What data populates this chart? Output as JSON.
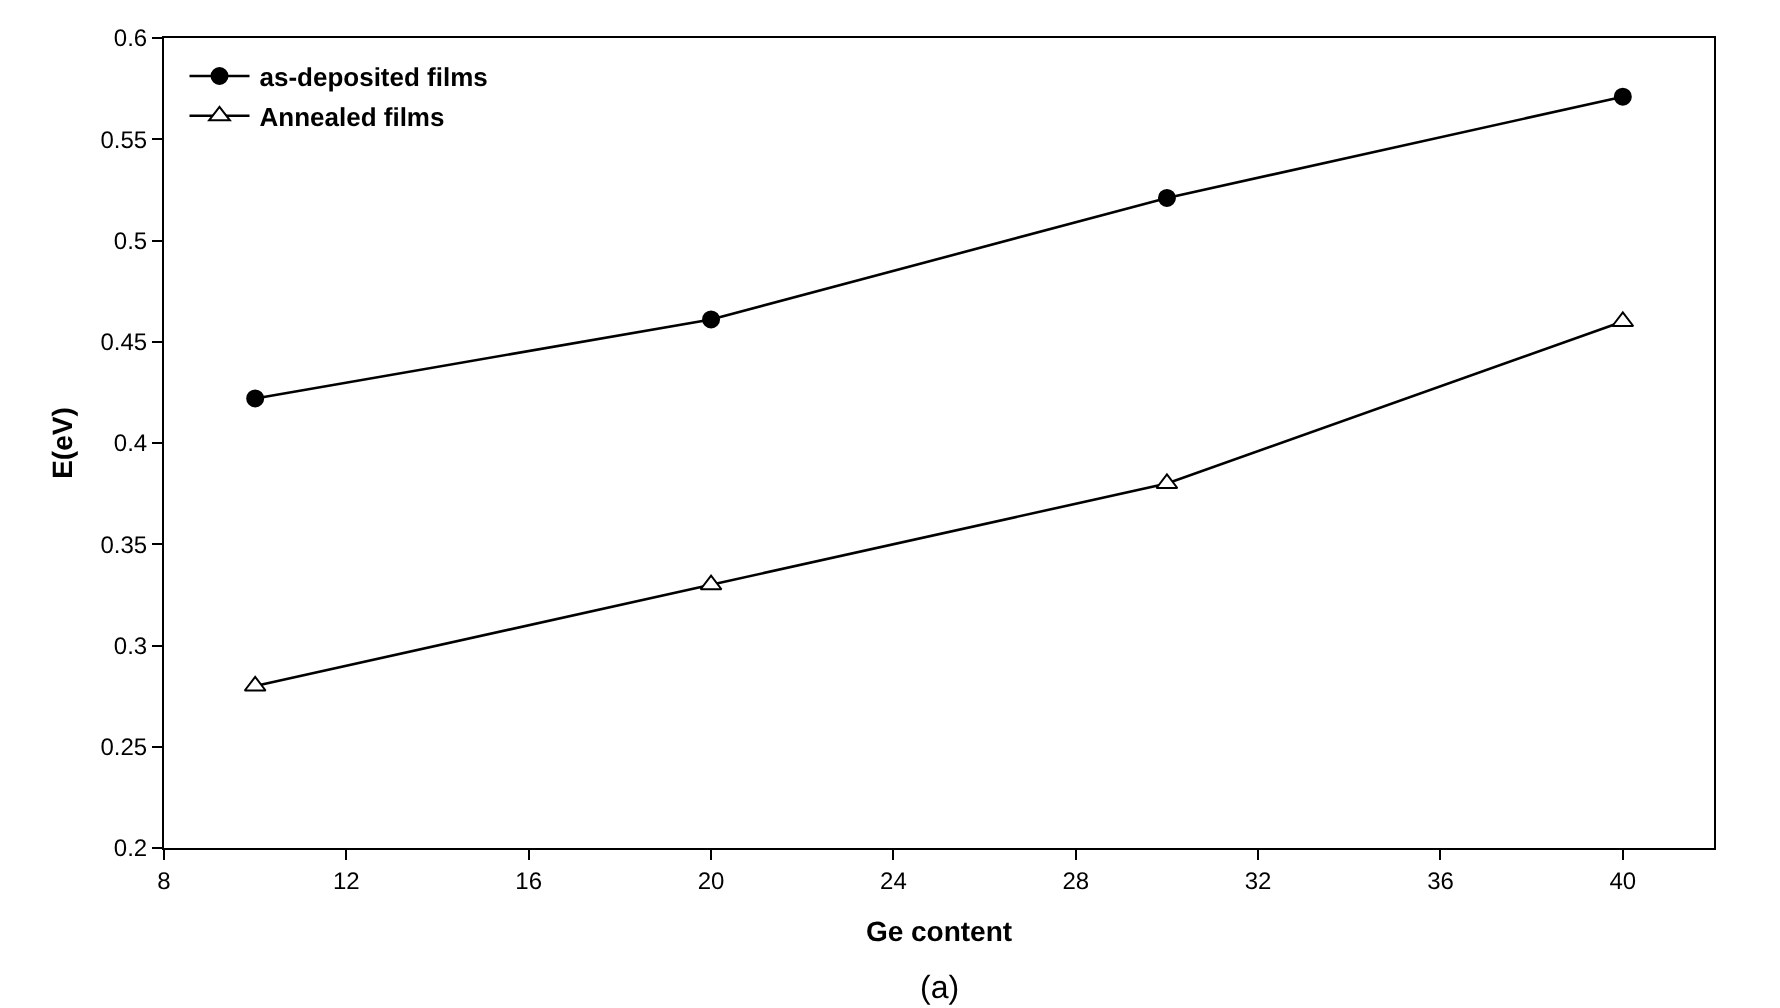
{
  "chart_data": {
    "type": "line",
    "xlabel": "Ge content",
    "ylabel": "E(eV)",
    "annotations": [
      "(a)"
    ],
    "x": [
      10,
      20,
      30,
      40
    ],
    "series": [
      {
        "name": "as-deposited films",
        "color": "#000000",
        "marker": "circle",
        "values": [
          0.422,
          0.461,
          0.521,
          0.571
        ]
      },
      {
        "name": "Annealed films",
        "color": "#000000",
        "marker": "triangle",
        "values": [
          0.28,
          0.33,
          0.38,
          0.46
        ]
      }
    ],
    "xlim": [
      8,
      42
    ],
    "xticks": [
      8,
      12,
      16,
      20,
      24,
      28,
      32,
      36,
      40
    ],
    "ylim": [
      0.2,
      0.6
    ],
    "yticks": [
      0.2,
      0.25,
      0.3,
      0.35,
      0.4,
      0.45,
      0.5,
      0.55,
      0.6
    ],
    "grid": false,
    "legend": "top left",
    "line_style": "solid"
  }
}
